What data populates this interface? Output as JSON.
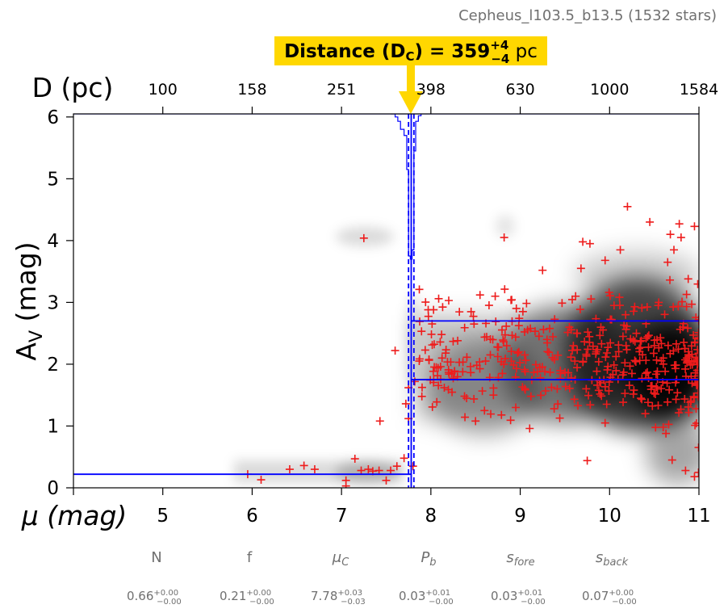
{
  "chart_data": {
    "type": "scatter",
    "title": "Cepheus_l103.5_b13.5 (1532 stars)",
    "banner": {
      "prefix": "Distance (D",
      "sub": "C",
      "mid": ") = 359",
      "sup": "+4",
      "inf": "−4",
      "unit": " pc"
    },
    "xlabel": "μ (mag)",
    "ylabel": "A",
    "ylabel_sub": "V",
    "ylabel_suffix": " (mag)",
    "top_xlabel": "D (pc)",
    "xlim": [
      4,
      11
    ],
    "ylim": [
      0,
      6.05
    ],
    "xticks": [
      4,
      5,
      6,
      7,
      8,
      9,
      10,
      11
    ],
    "xtick_labels": [
      "",
      "5",
      "6",
      "7",
      "8",
      "9",
      "10",
      "11"
    ],
    "yticks": [
      0,
      1,
      2,
      3,
      4,
      5,
      6
    ],
    "ytick_labels": [
      "0",
      "1",
      "2",
      "3",
      "4",
      "5",
      "6"
    ],
    "top_xticks": [
      5,
      6,
      7,
      8,
      9,
      10,
      11
    ],
    "top_xtick_labels": [
      "100",
      "158",
      "251",
      "398",
      "630",
      "1000",
      "1584"
    ],
    "cloud_distance_mu": 7.78,
    "cloud_distance_mu_err": [
      7.75,
      7.81
    ],
    "foreground_extinction": 0.22,
    "background_extinction": [
      1.75,
      2.7
    ],
    "stars_shown_sample": [
      [
        5.95,
        0.22
      ],
      [
        6.1,
        0.13
      ],
      [
        6.42,
        0.3
      ],
      [
        6.58,
        0.36
      ],
      [
        6.7,
        0.3
      ],
      [
        7.05,
        0.12
      ],
      [
        7.05,
        0.03
      ],
      [
        7.15,
        0.47
      ],
      [
        7.22,
        0.28
      ],
      [
        7.3,
        0.3
      ],
      [
        7.35,
        0.27
      ],
      [
        7.42,
        0.28
      ],
      [
        7.5,
        0.12
      ],
      [
        7.55,
        0.28
      ],
      [
        7.62,
        0.35
      ],
      [
        7.7,
        0.48
      ],
      [
        7.25,
        4.04
      ],
      [
        7.6,
        2.22
      ],
      [
        7.43,
        1.08
      ],
      [
        7.8,
        0.35
      ],
      [
        7.75,
        1.12
      ],
      [
        7.72,
        1.36
      ],
      [
        7.75,
        1.62
      ],
      [
        7.82,
        1.72
      ],
      [
        7.97,
        2.88
      ],
      [
        8.03,
        2.88
      ],
      [
        8.06,
        1.95
      ],
      [
        8.12,
        2.48
      ],
      [
        8.2,
        3.03
      ],
      [
        8.15,
        1.62
      ],
      [
        8.3,
        2.38
      ],
      [
        8.45,
        2.85
      ],
      [
        8.55,
        3.12
      ],
      [
        8.72,
        3.1
      ],
      [
        8.82,
        4.05
      ],
      [
        8.4,
        1.45
      ],
      [
        8.5,
        1.08
      ],
      [
        8.6,
        1.25
      ],
      [
        8.7,
        1.5
      ],
      [
        8.8,
        1.85
      ],
      [
        8.9,
        2.05
      ],
      [
        8.95,
        1.3
      ],
      [
        9.05,
        2.15
      ],
      [
        9.12,
        1.48
      ],
      [
        9.22,
        1.95
      ],
      [
        9.25,
        3.52
      ],
      [
        9.3,
        2.4
      ],
      [
        9.38,
        1.28
      ],
      [
        9.45,
        1.85
      ],
      [
        9.55,
        2.6
      ],
      [
        9.62,
        3.1
      ],
      [
        9.68,
        3.55
      ],
      [
        9.7,
        3.98
      ],
      [
        9.78,
        3.95
      ],
      [
        9.75,
        0.44
      ],
      [
        9.85,
        2.2
      ],
      [
        9.9,
        1.7
      ],
      [
        9.95,
        3.68
      ],
      [
        10.05,
        2.95
      ],
      [
        10.12,
        3.85
      ],
      [
        10.2,
        4.55
      ],
      [
        10.3,
        2.5
      ],
      [
        10.35,
        1.45
      ],
      [
        10.45,
        4.3
      ],
      [
        10.55,
        3.0
      ],
      [
        10.6,
        2.1
      ],
      [
        10.65,
        3.65
      ],
      [
        10.68,
        4.1
      ],
      [
        10.75,
        1.75
      ],
      [
        10.78,
        4.27
      ],
      [
        10.82,
        2.6
      ],
      [
        10.88,
        3.38
      ],
      [
        10.92,
        2.05
      ],
      [
        10.95,
        4.23
      ],
      [
        10.98,
        1.9
      ],
      [
        10.7,
        0.45
      ],
      [
        10.85,
        0.28
      ],
      [
        10.95,
        0.18
      ],
      [
        10.6,
        0.98
      ],
      [
        10.4,
        1.2
      ],
      [
        10.5,
        2.3
      ],
      [
        10.25,
        1.85
      ],
      [
        10.15,
        2.45
      ],
      [
        9.95,
        1.05
      ],
      [
        10.8,
        4.05
      ],
      [
        10.72,
        3.85
      ]
    ],
    "bottom_params": [
      {
        "name": "N",
        "value": "0.66",
        "sup": "+0.00",
        "inf": "−0.00"
      },
      {
        "name": "f",
        "value": "0.21",
        "sup": "+0.00",
        "inf": "−0.00"
      },
      {
        "name": "μ",
        "sub": "C",
        "value": "7.78",
        "sup": "+0.03",
        "inf": "−0.03"
      },
      {
        "name": "P",
        "sub": "b",
        "value": "0.03",
        "sup": "+0.01",
        "inf": "−0.00"
      },
      {
        "name": "s",
        "sub": "fore",
        "value": "0.03",
        "sup": "+0.01",
        "inf": "−0.00"
      },
      {
        "name": "s",
        "sub": "back",
        "value": "0.07",
        "sup": "+0.00",
        "inf": "−0.00"
      }
    ],
    "grid": false,
    "colors": {
      "points": "#ee1c1c",
      "model_lines": "#0000ff",
      "banner_bg": "#ffd700",
      "arrow": "#ffd700",
      "axis": "#000000",
      "param_text": "#707070"
    }
  }
}
